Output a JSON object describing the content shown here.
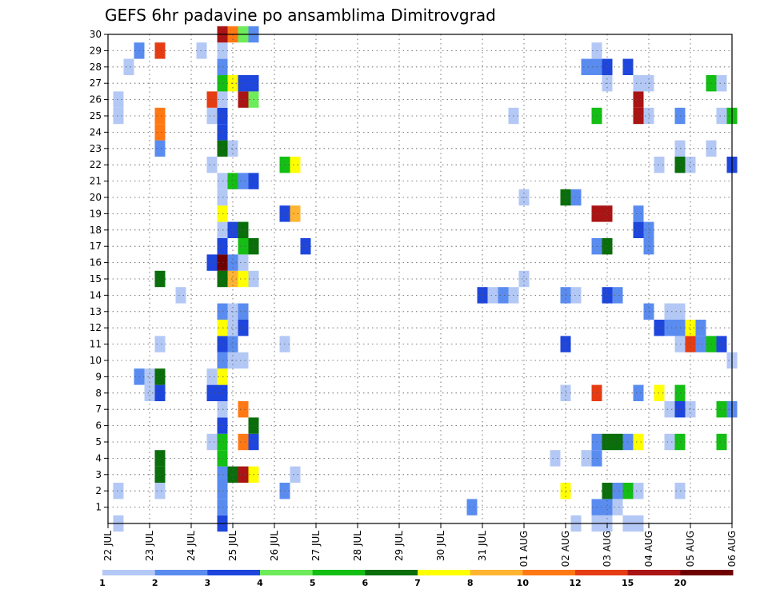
{
  "chart_data": {
    "type": "heatmap",
    "title": "GEFS 6hr padavine po ansamblima Dimitrovgrad",
    "xlabel": "",
    "ylabel": "",
    "x_tick_labels": [
      "22 JUL",
      "23 JUL",
      "24 JUL",
      "25 JUL",
      "26 JUL",
      "27 JUL",
      "28 JUL",
      "29 JUL",
      "30 JUL",
      "31 JUL",
      "01 AUG",
      "02 AUG",
      "03 AUG",
      "04 AUG",
      "05 AUG",
      "06 AUG"
    ],
    "x_range_days": [
      0,
      15
    ],
    "y_tick_labels": [
      "1",
      "2",
      "3",
      "4",
      "5",
      "6",
      "7",
      "8",
      "9",
      "10",
      "11",
      "12",
      "13",
      "14",
      "15",
      "16",
      "17",
      "18",
      "19",
      "20",
      "21",
      "22",
      "23",
      "24",
      "25",
      "26",
      "27",
      "28",
      "29",
      "30"
    ],
    "y_range_members": [
      0,
      30
    ],
    "grid": true,
    "legend_placement": "bottom",
    "legend": {
      "labels": [
        "1",
        "2",
        "3",
        "4",
        "5",
        "6",
        "7",
        "8",
        "10",
        "12",
        "15",
        "20"
      ],
      "colors": [
        "#b4c8f5",
        "#5a8cf0",
        "#1e46dc",
        "#6eeb5a",
        "#14be14",
        "#0a6e0a",
        "#ffff00",
        "#ffb432",
        "#ff7814",
        "#e63c14",
        "#aa1414",
        "#6e0000"
      ]
    },
    "cell_value_unit": "color class index (0 = 1, 11 = >20) from legend",
    "cells": [
      [
        0.25,
        0,
        0
      ],
      [
        0.25,
        2,
        0
      ],
      [
        0.25,
        25,
        0
      ],
      [
        0.25,
        26,
        0
      ],
      [
        0.5,
        28,
        0
      ],
      [
        0.75,
        9,
        1
      ],
      [
        0.75,
        29,
        1
      ],
      [
        1.0,
        8,
        0
      ],
      [
        1.0,
        9,
        0
      ],
      [
        1.25,
        3,
        5
      ],
      [
        1.25,
        4,
        5
      ],
      [
        1.25,
        8,
        2
      ],
      [
        1.25,
        9,
        5
      ],
      [
        1.25,
        15,
        5
      ],
      [
        1.25,
        2,
        0
      ],
      [
        1.25,
        11,
        0
      ],
      [
        1.25,
        23,
        1
      ],
      [
        1.25,
        24,
        8
      ],
      [
        1.25,
        25,
        8
      ],
      [
        1.25,
        29,
        9
      ],
      [
        1.75,
        14,
        0
      ],
      [
        2.25,
        29,
        0
      ],
      [
        2.5,
        5,
        0
      ],
      [
        2.5,
        8,
        2
      ],
      [
        2.5,
        9,
        0
      ],
      [
        2.5,
        22,
        0
      ],
      [
        2.5,
        25,
        0
      ],
      [
        2.5,
        26,
        9
      ],
      [
        2.5,
        16,
        2
      ],
      [
        2.75,
        0,
        2
      ],
      [
        2.75,
        1,
        1
      ],
      [
        2.75,
        2,
        1
      ],
      [
        2.75,
        3,
        1
      ],
      [
        2.75,
        4,
        4
      ],
      [
        2.75,
        5,
        4
      ],
      [
        2.75,
        6,
        2
      ],
      [
        2.75,
        7,
        0
      ],
      [
        2.75,
        8,
        2
      ],
      [
        2.75,
        9,
        6
      ],
      [
        2.75,
        10,
        1
      ],
      [
        2.75,
        11,
        2
      ],
      [
        2.75,
        12,
        6
      ],
      [
        2.75,
        13,
        1
      ],
      [
        2.75,
        15,
        5
      ],
      [
        2.75,
        16,
        11
      ],
      [
        2.75,
        17,
        2
      ],
      [
        2.75,
        18,
        0
      ],
      [
        2.75,
        19,
        6
      ],
      [
        2.75,
        20,
        0
      ],
      [
        2.75,
        21,
        0
      ],
      [
        2.75,
        23,
        5
      ],
      [
        2.75,
        24,
        2
      ],
      [
        2.75,
        25,
        2
      ],
      [
        2.75,
        26,
        0
      ],
      [
        2.75,
        27,
        4
      ],
      [
        2.75,
        28,
        1
      ],
      [
        2.75,
        29,
        0
      ],
      [
        2.75,
        30,
        10
      ],
      [
        3.0,
        3,
        5
      ],
      [
        3.0,
        10,
        0
      ],
      [
        3.0,
        11,
        1
      ],
      [
        3.0,
        12,
        0
      ],
      [
        3.0,
        13,
        0
      ],
      [
        3.0,
        15,
        7
      ],
      [
        3.0,
        16,
        1
      ],
      [
        3.0,
        18,
        2
      ],
      [
        3.0,
        21,
        4
      ],
      [
        3.0,
        23,
        0
      ],
      [
        3.0,
        27,
        6
      ],
      [
        3.0,
        30,
        8
      ],
      [
        3.25,
        3,
        10
      ],
      [
        3.25,
        5,
        8
      ],
      [
        3.25,
        7,
        8
      ],
      [
        3.25,
        10,
        0
      ],
      [
        3.25,
        12,
        2
      ],
      [
        3.25,
        13,
        1
      ],
      [
        3.25,
        15,
        6
      ],
      [
        3.25,
        16,
        0
      ],
      [
        3.25,
        17,
        4
      ],
      [
        3.25,
        18,
        5
      ],
      [
        3.25,
        21,
        1
      ],
      [
        3.25,
        26,
        10
      ],
      [
        3.25,
        27,
        2
      ],
      [
        3.25,
        30,
        3
      ],
      [
        3.5,
        3,
        6
      ],
      [
        3.5,
        5,
        2
      ],
      [
        3.5,
        6,
        5
      ],
      [
        3.5,
        15,
        0
      ],
      [
        3.5,
        17,
        5
      ],
      [
        3.5,
        21,
        2
      ],
      [
        3.5,
        26,
        3
      ],
      [
        3.5,
        27,
        2
      ],
      [
        3.5,
        30,
        1
      ],
      [
        4.25,
        11,
        0
      ],
      [
        4.25,
        2,
        1
      ],
      [
        4.25,
        19,
        2
      ],
      [
        4.25,
        22,
        4
      ],
      [
        4.5,
        3,
        0
      ],
      [
        4.5,
        19,
        7
      ],
      [
        4.5,
        22,
        6
      ],
      [
        4.75,
        17,
        2
      ],
      [
        8.75,
        1,
        1
      ],
      [
        9.0,
        14,
        2
      ],
      [
        9.25,
        14,
        0
      ],
      [
        9.5,
        14,
        1
      ],
      [
        9.75,
        14,
        0
      ],
      [
        9.75,
        25,
        0
      ],
      [
        10.0,
        15,
        0
      ],
      [
        10.0,
        20,
        0
      ],
      [
        10.75,
        4,
        0
      ],
      [
        11.0,
        2,
        6
      ],
      [
        11.0,
        8,
        0
      ],
      [
        11.0,
        11,
        2
      ],
      [
        11.0,
        14,
        1
      ],
      [
        11.0,
        20,
        5
      ],
      [
        11.25,
        0,
        0
      ],
      [
        11.25,
        14,
        0
      ],
      [
        11.25,
        20,
        1
      ],
      [
        11.5,
        4,
        0
      ],
      [
        11.5,
        28,
        1
      ],
      [
        11.75,
        0,
        0
      ],
      [
        11.75,
        1,
        1
      ],
      [
        11.75,
        4,
        1
      ],
      [
        11.75,
        5,
        1
      ],
      [
        11.75,
        8,
        9
      ],
      [
        11.75,
        17,
        1
      ],
      [
        11.75,
        19,
        10
      ],
      [
        11.75,
        25,
        4
      ],
      [
        11.75,
        28,
        1
      ],
      [
        11.75,
        29,
        0
      ],
      [
        12.0,
        0,
        0
      ],
      [
        12.0,
        1,
        1
      ],
      [
        12.0,
        2,
        5
      ],
      [
        12.0,
        5,
        5
      ],
      [
        12.0,
        14,
        2
      ],
      [
        12.0,
        17,
        5
      ],
      [
        12.0,
        19,
        10
      ],
      [
        12.0,
        27,
        0
      ],
      [
        12.0,
        28,
        2
      ],
      [
        12.25,
        1,
        0
      ],
      [
        12.25,
        2,
        1
      ],
      [
        12.25,
        5,
        5
      ],
      [
        12.25,
        14,
        1
      ],
      [
        12.5,
        0,
        0
      ],
      [
        12.5,
        2,
        4
      ],
      [
        12.5,
        5,
        1
      ],
      [
        12.5,
        28,
        2
      ],
      [
        12.75,
        0,
        0
      ],
      [
        12.75,
        2,
        0
      ],
      [
        12.75,
        5,
        6
      ],
      [
        12.75,
        8,
        1
      ],
      [
        12.75,
        18,
        2
      ],
      [
        12.75,
        19,
        1
      ],
      [
        12.75,
        25,
        10
      ],
      [
        12.75,
        26,
        10
      ],
      [
        12.75,
        27,
        0
      ],
      [
        13.0,
        13,
        1
      ],
      [
        13.0,
        17,
        1
      ],
      [
        13.0,
        18,
        1
      ],
      [
        13.0,
        25,
        0
      ],
      [
        13.0,
        27,
        0
      ],
      [
        13.25,
        8,
        6
      ],
      [
        13.25,
        12,
        2
      ],
      [
        13.25,
        22,
        0
      ],
      [
        13.5,
        5,
        0
      ],
      [
        13.5,
        7,
        0
      ],
      [
        13.5,
        12,
        1
      ],
      [
        13.5,
        13,
        0
      ],
      [
        13.75,
        2,
        0
      ],
      [
        13.75,
        5,
        4
      ],
      [
        13.75,
        7,
        2
      ],
      [
        13.75,
        8,
        4
      ],
      [
        13.75,
        11,
        0
      ],
      [
        13.75,
        12,
        1
      ],
      [
        13.75,
        13,
        0
      ],
      [
        13.75,
        22,
        5
      ],
      [
        13.75,
        23,
        0
      ],
      [
        13.75,
        25,
        1
      ],
      [
        14.0,
        7,
        0
      ],
      [
        14.0,
        11,
        9
      ],
      [
        14.0,
        12,
        6
      ],
      [
        14.0,
        22,
        0
      ],
      [
        14.25,
        11,
        1
      ],
      [
        14.25,
        12,
        1
      ],
      [
        14.5,
        11,
        4
      ],
      [
        14.5,
        23,
        0
      ],
      [
        14.5,
        27,
        4
      ],
      [
        14.75,
        5,
        4
      ],
      [
        14.75,
        7,
        4
      ],
      [
        14.75,
        11,
        2
      ],
      [
        14.75,
        25,
        0
      ],
      [
        14.75,
        27,
        0
      ],
      [
        15.0,
        10,
        0
      ],
      [
        15.0,
        7,
        1
      ],
      [
        15.0,
        22,
        2
      ],
      [
        15.0,
        25,
        4
      ]
    ]
  }
}
